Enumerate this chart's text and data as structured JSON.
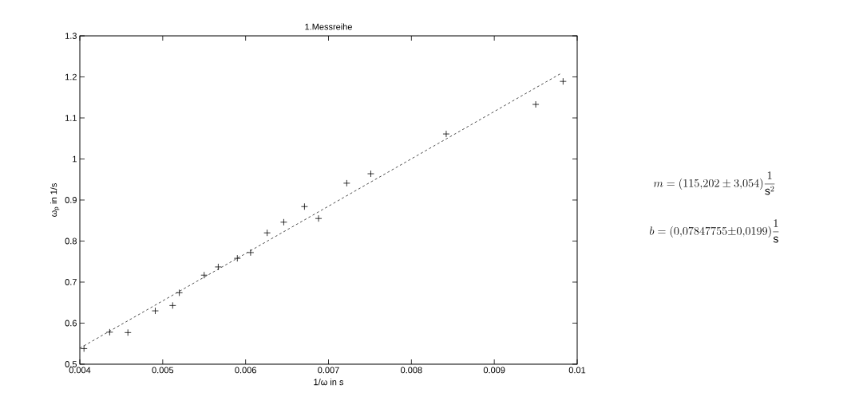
{
  "chart_data": {
    "type": "scatter",
    "title": "1.Messreihe",
    "xlabel": "1/ω in s",
    "ylabel": "ω$_{p}$ in 1/s",
    "xlim": [
      0.004,
      0.01
    ],
    "xticks": [
      0.004,
      0.005,
      0.006,
      0.007,
      0.008,
      0.009,
      0.01
    ],
    "ylim": [
      0.5,
      1.3
    ],
    "yticks": [
      0.5,
      0.6,
      0.7,
      0.8,
      0.9,
      1,
      1.1,
      1.2,
      1.3
    ],
    "series": [
      {
        "marker": "cross",
        "color": "#000000",
        "x": [
          0.00405,
          0.00436,
          0.00458,
          0.00491,
          0.00512,
          0.0052,
          0.0055,
          0.00567,
          0.0059,
          0.00606,
          0.00626,
          0.00646,
          0.00671,
          0.00688,
          0.00722,
          0.00751,
          0.00842,
          0.0095,
          0.00983
        ],
        "values": [
          0.538,
          0.578,
          0.577,
          0.63,
          0.643,
          0.674,
          0.717,
          0.737,
          0.758,
          0.772,
          0.82,
          0.846,
          0.884,
          0.855,
          0.941,
          0.964,
          1.061,
          1.133,
          1.189
        ]
      },
      {
        "type": "line",
        "line_style": "dashed",
        "marker": "none",
        "color": "#000000",
        "x": [
          0.004,
          0.0098
        ],
        "values": [
          0.539,
          1.208
        ]
      }
    ],
    "annotations": [
      "m = (115{,}202 \\pm 3{,}054)\\frac{1}{\\mathrm{s}^2}",
      "b = (0{,}07847755{\\pm}0{,}0199)\\frac{1}{\\mathrm{s}}"
    ]
  }
}
